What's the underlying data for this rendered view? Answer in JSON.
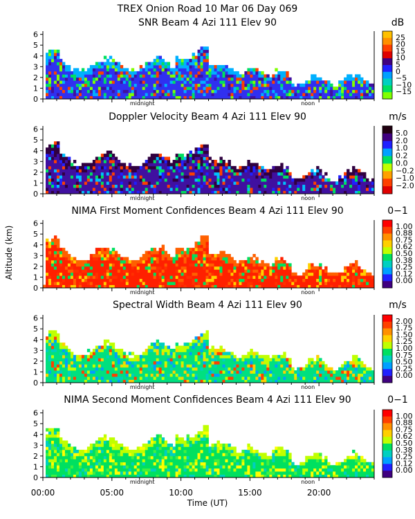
{
  "figure": {
    "title_line1": "TREX Onion Road  10 Mar 06 Day 069",
    "ylabel": "Altitude (km)",
    "xlabel": "Time (UT)",
    "x_tick_labels": [
      "00:00",
      "05:00",
      "10:00",
      "15:00",
      "20:00"
    ],
    "midnight_label": "midnight",
    "noon_label": "noon"
  },
  "chart_data": [
    {
      "type": "heatmap",
      "title": "SNR Beam 4 Azi 111 Elev 90",
      "units": "dB",
      "x_range_hours": [
        0,
        24
      ],
      "y_range_km": [
        0,
        6.3
      ],
      "y_ticks": [
        0,
        1,
        2,
        3,
        4,
        5,
        6
      ],
      "colorbar_labels": [
        "25",
        "20",
        "15",
        "10",
        "5",
        "0",
        "−5",
        "−10",
        "−15"
      ],
      "colorbar_colors": [
        "#ffc000",
        "#ff9000",
        "#ff4000",
        "#e00000",
        "#400080",
        "#2020ff",
        "#00a0ff",
        "#00d0c0",
        "#00e060",
        "#80ff00"
      ],
      "dominant_colors": [
        "#3030f0",
        "#4010a0",
        "#00b0ff",
        "#00e060",
        "#80ff00",
        "#ff4000"
      ]
    },
    {
      "type": "heatmap",
      "title": "Doppler Velocity Beam 4 Azi 111 Elev 90",
      "units": "m/s",
      "x_range_hours": [
        0,
        24
      ],
      "y_range_km": [
        0,
        6.3
      ],
      "y_ticks": [
        0,
        1,
        2,
        3,
        4,
        5,
        6
      ],
      "colorbar_labels": [
        "5.0",
        "2.0",
        "1.0",
        "0.2",
        "0.0",
        "−0.2",
        "−1.0",
        "−2.0"
      ],
      "colorbar_colors": [
        "#200010",
        "#400080",
        "#2020ff",
        "#00a0ff",
        "#00e060",
        "#c0ff00",
        "#ffa000",
        "#ff4000",
        "#e00000"
      ],
      "dominant_colors": [
        "#4010a0",
        "#2020ff",
        "#300040",
        "#00c0ff",
        "#00e060",
        "#ff4000"
      ]
    },
    {
      "type": "heatmap",
      "title": "NIMA First Moment Confidences Beam 4 Azi 111 Elev 90",
      "units": "0−1",
      "x_range_hours": [
        0,
        24
      ],
      "y_range_km": [
        0,
        6.3
      ],
      "y_ticks": [
        0,
        1,
        2,
        3,
        4,
        5,
        6
      ],
      "colorbar_labels": [
        "1.00",
        "0.88",
        "0.75",
        "0.62",
        "0.50",
        "0.38",
        "0.25",
        "0.12",
        "0.00"
      ],
      "colorbar_colors": [
        "#ff0000",
        "#ff4000",
        "#ff9000",
        "#ffd000",
        "#c0ff00",
        "#00e060",
        "#00d0c0",
        "#00a0ff",
        "#2020ff",
        "#400080"
      ],
      "dominant_colors": [
        "#ff2000",
        "#ff3000",
        "#ff6000",
        "#ffd000",
        "#00e060"
      ]
    },
    {
      "type": "heatmap",
      "title": "Spectral Width Beam 4 Azi 111 Elev 90",
      "units": "m/s",
      "x_range_hours": [
        0,
        24
      ],
      "y_range_km": [
        0,
        6.3
      ],
      "y_ticks": [
        0,
        1,
        2,
        3,
        4,
        5,
        6
      ],
      "colorbar_labels": [
        "2.00",
        "1.75",
        "1.50",
        "1.25",
        "1.00",
        "0.75",
        "0.50",
        "0.25",
        "0.00"
      ],
      "colorbar_colors": [
        "#ff0000",
        "#ff4000",
        "#ff9000",
        "#ffd000",
        "#c0ff00",
        "#00e060",
        "#00d0c0",
        "#00a0ff",
        "#2020ff",
        "#400080"
      ],
      "dominant_colors": [
        "#00e080",
        "#00d0c0",
        "#c0ff00",
        "#ffd000",
        "#ff4000",
        "#00a0ff"
      ]
    },
    {
      "type": "heatmap",
      "title": "NIMA Second Moment Confidences Beam 4 Azi 111 Elev 90",
      "units": "0−1",
      "x_range_hours": [
        0,
        24
      ],
      "y_range_km": [
        0,
        6.3
      ],
      "y_ticks": [
        0,
        1,
        2,
        3,
        4,
        5,
        6
      ],
      "colorbar_labels": [
        "1.00",
        "0.88",
        "0.75",
        "0.62",
        "0.50",
        "0.38",
        "0.25",
        "0.12",
        "0.00"
      ],
      "colorbar_colors": [
        "#ff0000",
        "#ff4000",
        "#ff9000",
        "#ffd000",
        "#c0ff00",
        "#00e060",
        "#00d0c0",
        "#00a0ff",
        "#2020ff",
        "#400080"
      ],
      "dominant_colors": [
        "#00e060",
        "#40f040",
        "#c0ff00",
        "#00d0c0",
        "#ffff00"
      ]
    }
  ]
}
